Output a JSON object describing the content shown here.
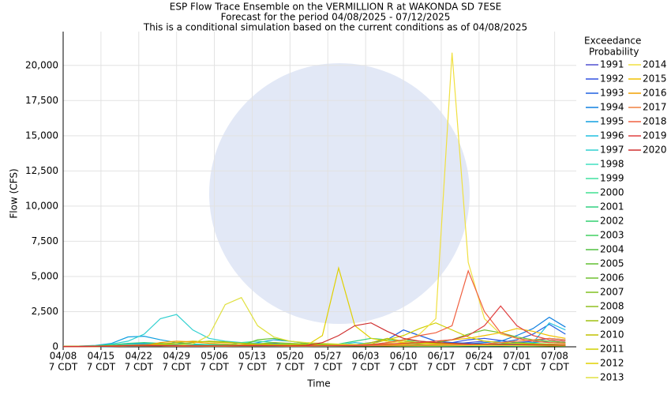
{
  "chart_data": {
    "type": "line",
    "title": "ESP Flow Trace Ensemble on the VERMILLION R at WAKONDA SD 7ESE",
    "subtitles": [
      "Forecast for the period 04/08/2025 - 07/12/2025",
      "This is a conditional simulation based on the current conditions as of 04/08/2025"
    ],
    "x_label": "Time",
    "y_label": "Flow (CFS)",
    "legend_title": [
      "Exceedance",
      "Probability"
    ],
    "x": [
      "04/08",
      "04/11",
      "04/14",
      "04/17",
      "04/20",
      "04/23",
      "04/26",
      "04/29",
      "05/02",
      "05/05",
      "05/08",
      "05/11",
      "05/14",
      "05/17",
      "05/20",
      "05/23",
      "05/26",
      "05/29",
      "06/01",
      "06/04",
      "06/07",
      "06/10",
      "06/13",
      "06/16",
      "06/19",
      "06/22",
      "06/25",
      "06/28",
      "07/01",
      "07/04",
      "07/07",
      "07/10"
    ],
    "xlim": [
      "04/08",
      "07/12"
    ],
    "xticks": [
      "04/08",
      "04/15",
      "04/22",
      "04/29",
      "05/06",
      "05/13",
      "05/20",
      "05/27",
      "06/03",
      "06/10",
      "06/17",
      "06/24",
      "07/01",
      "07/08"
    ],
    "xtick_sublabel": "7 CDT",
    "ylim": [
      0,
      22400
    ],
    "yticks": [
      0,
      {
        "value": 2500,
        "label": "2,500"
      },
      {
        "value": 5000,
        "label": "5,000"
      },
      {
        "value": 7500,
        "label": "7,500"
      },
      {
        "value": 10000,
        "label": "10,000"
      },
      {
        "value": 12500,
        "label": "12,500"
      },
      {
        "value": 15000,
        "label": "15,000"
      },
      {
        "value": 17500,
        "label": "17,500"
      },
      {
        "value": 20000,
        "label": "20,000"
      }
    ],
    "grid": true,
    "series": [
      {
        "name": "1991",
        "color": "#5050d0",
        "values": [
          20,
          20,
          30,
          60,
          100,
          120,
          110,
          90,
          80,
          70,
          60,
          60,
          70,
          80,
          70,
          60,
          60,
          70,
          90,
          100,
          120,
          140,
          130,
          120,
          200,
          300,
          400,
          300,
          200,
          150,
          120,
          100
        ]
      },
      {
        "name": "1992",
        "color": "#3050e0",
        "values": [
          10,
          10,
          20,
          30,
          50,
          60,
          60,
          50,
          50,
          40,
          40,
          50,
          60,
          50,
          40,
          40,
          50,
          60,
          80,
          90,
          100,
          110,
          100,
          120,
          300,
          500,
          600,
          450,
          300,
          400,
          600,
          500
        ]
      },
      {
        "name": "1993",
        "color": "#2060e0",
        "values": [
          30,
          30,
          50,
          80,
          150,
          200,
          180,
          150,
          120,
          100,
          90,
          100,
          200,
          250,
          200,
          150,
          120,
          100,
          150,
          300,
          500,
          1200,
          800,
          400,
          300,
          250,
          200,
          300,
          500,
          900,
          1600,
          900
        ]
      },
      {
        "name": "1994",
        "color": "#1080e0",
        "values": [
          20,
          20,
          40,
          60,
          100,
          120,
          110,
          100,
          90,
          80,
          70,
          80,
          90,
          80,
          70,
          60,
          60,
          80,
          100,
          120,
          140,
          150,
          130,
          120,
          150,
          200,
          300,
          400,
          800,
          1300,
          2100,
          1400
        ]
      },
      {
        "name": "1995",
        "color": "#10a0e0",
        "values": [
          50,
          60,
          100,
          250,
          700,
          750,
          500,
          300,
          200,
          150,
          130,
          120,
          300,
          500,
          400,
          250,
          200,
          150,
          130,
          120,
          110,
          100,
          90,
          90,
          100,
          150,
          200,
          200,
          200,
          300,
          400,
          300
        ]
      },
      {
        "name": "1996",
        "color": "#20c0e0",
        "values": [
          30,
          30,
          60,
          100,
          200,
          250,
          200,
          180,
          150,
          130,
          120,
          130,
          150,
          140,
          120,
          110,
          100,
          150,
          300,
          200,
          150,
          120,
          100,
          100,
          110,
          120,
          150,
          200,
          250,
          300,
          1700,
          1200
        ]
      },
      {
        "name": "1997",
        "color": "#30d0d0",
        "values": [
          40,
          40,
          80,
          200,
          400,
          900,
          2000,
          2300,
          1200,
          600,
          400,
          300,
          250,
          200,
          180,
          160,
          150,
          140,
          130,
          120,
          110,
          100,
          90,
          90,
          90,
          100,
          110,
          120,
          130,
          140,
          150,
          140
        ]
      },
      {
        "name": "1998",
        "color": "#40e0c0",
        "values": [
          20,
          20,
          30,
          50,
          80,
          100,
          90,
          80,
          70,
          60,
          60,
          70,
          80,
          70,
          60,
          60,
          70,
          80,
          100,
          150,
          200,
          180,
          150,
          120,
          100,
          90,
          80,
          80,
          80,
          90,
          100,
          90
        ]
      },
      {
        "name": "1999",
        "color": "#40e0a0",
        "values": [
          30,
          30,
          40,
          60,
          90,
          110,
          100,
          90,
          80,
          80,
          100,
          300,
          400,
          300,
          200,
          150,
          120,
          110,
          100,
          90,
          80,
          80,
          70,
          70,
          70,
          80,
          90,
          100,
          110,
          120,
          130,
          120
        ]
      },
      {
        "name": "2000",
        "color": "#40e090",
        "values": [
          10,
          10,
          20,
          30,
          40,
          50,
          50,
          40,
          40,
          30,
          30,
          40,
          50,
          40,
          30,
          30,
          40,
          50,
          60,
          70,
          60,
          50,
          40,
          40,
          50,
          60,
          70,
          60,
          50,
          50,
          60,
          50
        ]
      },
      {
        "name": "2001",
        "color": "#30d080",
        "values": [
          40,
          40,
          80,
          150,
          250,
          300,
          250,
          200,
          180,
          160,
          150,
          160,
          200,
          180,
          160,
          140,
          150,
          200,
          400,
          600,
          500,
          400,
          300,
          250,
          200,
          180,
          160,
          150,
          140,
          130,
          120,
          110
        ]
      },
      {
        "name": "2002",
        "color": "#30d070",
        "values": [
          20,
          20,
          30,
          40,
          60,
          70,
          60,
          50,
          50,
          40,
          40,
          50,
          60,
          50,
          40,
          40,
          50,
          60,
          70,
          80,
          90,
          80,
          70,
          60,
          60,
          70,
          80,
          70,
          60,
          60,
          70,
          60
        ]
      },
      {
        "name": "2003",
        "color": "#40d060",
        "values": [
          30,
          30,
          40,
          60,
          80,
          100,
          90,
          80,
          70,
          70,
          80,
          100,
          120,
          110,
          100,
          90,
          80,
          90,
          100,
          150,
          300,
          500,
          400,
          300,
          250,
          200,
          180,
          160,
          150,
          140,
          130,
          120
        ]
      },
      {
        "name": "2004",
        "color": "#50c040",
        "values": [
          20,
          20,
          30,
          50,
          70,
          80,
          70,
          60,
          60,
          50,
          50,
          60,
          70,
          60,
          50,
          50,
          60,
          70,
          80,
          90,
          100,
          90,
          80,
          70,
          80,
          100,
          150,
          200,
          300,
          250,
          200,
          150
        ]
      },
      {
        "name": "2005",
        "color": "#60c030",
        "values": [
          30,
          30,
          50,
          70,
          100,
          120,
          100,
          90,
          80,
          70,
          70,
          100,
          500,
          600,
          400,
          250,
          200,
          150,
          130,
          120,
          110,
          100,
          90,
          90,
          100,
          110,
          120,
          110,
          100,
          90,
          80,
          70
        ]
      },
      {
        "name": "2006",
        "color": "#70c030",
        "values": [
          20,
          20,
          30,
          50,
          70,
          90,
          80,
          70,
          60,
          60,
          60,
          70,
          80,
          70,
          60,
          60,
          70,
          80,
          90,
          100,
          120,
          150,
          200,
          300,
          500,
          900,
          1200,
          1000,
          700,
          500,
          400,
          300
        ]
      },
      {
        "name": "2007",
        "color": "#80c020",
        "values": [
          20,
          20,
          30,
          40,
          60,
          70,
          60,
          50,
          50,
          50,
          50,
          60,
          70,
          60,
          50,
          50,
          60,
          70,
          80,
          90,
          100,
          110,
          120,
          130,
          140,
          150,
          160,
          150,
          140,
          130,
          120,
          110
        ]
      },
      {
        "name": "2008",
        "color": "#90c020",
        "values": [
          30,
          30,
          40,
          60,
          80,
          100,
          90,
          80,
          80,
          80,
          90,
          100,
          200,
          300,
          250,
          200,
          150,
          130,
          120,
          110,
          100,
          90,
          90,
          90,
          100,
          110,
          120,
          130,
          140,
          150,
          160,
          150
        ]
      },
      {
        "name": "2009",
        "color": "#a0c010",
        "values": [
          20,
          20,
          30,
          50,
          80,
          100,
          150,
          200,
          300,
          400,
          350,
          250,
          200,
          150,
          120,
          100,
          90,
          80,
          70,
          70,
          60,
          60,
          60,
          70,
          80,
          90,
          100,
          90,
          80,
          70,
          60,
          60
        ]
      },
      {
        "name": "2010",
        "color": "#c0c000",
        "values": [
          30,
          30,
          50,
          80,
          120,
          150,
          200,
          300,
          400,
          350,
          300,
          250,
          200,
          180,
          160,
          150,
          140,
          130,
          120,
          300,
          600,
          400,
          300,
          250,
          200,
          180,
          160,
          150,
          140,
          130,
          120,
          110
        ]
      },
      {
        "name": "2011",
        "color": "#d0d000",
        "values": [
          20,
          20,
          30,
          50,
          70,
          90,
          80,
          70,
          60,
          60,
          60,
          70,
          80,
          70,
          60,
          60,
          70,
          80,
          100,
          200,
          500,
          800,
          1300,
          1700,
          1200,
          700,
          400,
          300,
          250,
          200,
          180,
          160
        ]
      },
      {
        "name": "2012",
        "color": "#e0d000",
        "values": [
          20,
          20,
          30,
          50,
          70,
          80,
          70,
          60,
          60,
          60,
          60,
          70,
          80,
          70,
          60,
          80,
          800,
          5600,
          1500,
          600,
          400,
          300,
          250,
          200,
          180,
          160,
          150,
          140,
          130,
          120,
          110,
          100
        ]
      },
      {
        "name": "2013",
        "color": "#e0e040",
        "values": [
          30,
          30,
          40,
          60,
          100,
          120,
          110,
          100,
          200,
          800,
          3000,
          3500,
          1500,
          700,
          400,
          300,
          250,
          200,
          180,
          160,
          150,
          140,
          130,
          120,
          110,
          100,
          90,
          90,
          90,
          100,
          110,
          100
        ]
      },
      {
        "name": "2014",
        "color": "#f0e040",
        "values": [
          20,
          20,
          30,
          40,
          60,
          70,
          60,
          50,
          50,
          50,
          50,
          60,
          70,
          60,
          50,
          60,
          70,
          80,
          100,
          150,
          250,
          400,
          900,
          2000,
          20900,
          6000,
          2000,
          900,
          600,
          400,
          300,
          250
        ]
      },
      {
        "name": "2015",
        "color": "#f0c000",
        "values": [
          30,
          30,
          40,
          60,
          80,
          100,
          90,
          80,
          70,
          70,
          70,
          80,
          90,
          80,
          70,
          70,
          80,
          90,
          100,
          120,
          150,
          200,
          300,
          400,
          500,
          600,
          800,
          1000,
          1300,
          1100,
          800,
          600
        ]
      },
      {
        "name": "2016",
        "color": "#f0a000",
        "values": [
          20,
          20,
          30,
          50,
          70,
          80,
          300,
          400,
          350,
          250,
          200,
          150,
          120,
          100,
          90,
          80,
          80,
          90,
          100,
          110,
          120,
          130,
          140,
          150,
          160,
          170,
          180,
          170,
          160,
          150,
          140,
          130
        ]
      },
      {
        "name": "2017",
        "color": "#f08040",
        "values": [
          20,
          20,
          30,
          40,
          60,
          70,
          60,
          50,
          50,
          50,
          50,
          60,
          70,
          60,
          50,
          50,
          60,
          70,
          80,
          90,
          100,
          110,
          120,
          130,
          140,
          150,
          200,
          300,
          400,
          500,
          600,
          500
        ]
      },
      {
        "name": "2018",
        "color": "#f06040",
        "values": [
          30,
          30,
          40,
          60,
          80,
          100,
          90,
          80,
          70,
          70,
          70,
          80,
          90,
          80,
          70,
          70,
          80,
          90,
          100,
          150,
          300,
          500,
          800,
          1000,
          1500,
          5400,
          2500,
          1000,
          600,
          400,
          300,
          250
        ]
      },
      {
        "name": "2019",
        "color": "#e04040",
        "values": [
          20,
          20,
          30,
          50,
          70,
          80,
          70,
          60,
          60,
          60,
          60,
          70,
          80,
          70,
          60,
          60,
          70,
          80,
          100,
          150,
          200,
          250,
          300,
          400,
          500,
          800,
          1500,
          2900,
          1500,
          800,
          500,
          400
        ]
      },
      {
        "name": "2020",
        "color": "#d03030",
        "values": [
          20,
          20,
          30,
          50,
          70,
          90,
          80,
          70,
          60,
          60,
          60,
          70,
          80,
          70,
          60,
          100,
          300,
          800,
          1500,
          1700,
          1100,
          600,
          400,
          300,
          250,
          200,
          180,
          160,
          150,
          140,
          130,
          120
        ]
      }
    ]
  }
}
